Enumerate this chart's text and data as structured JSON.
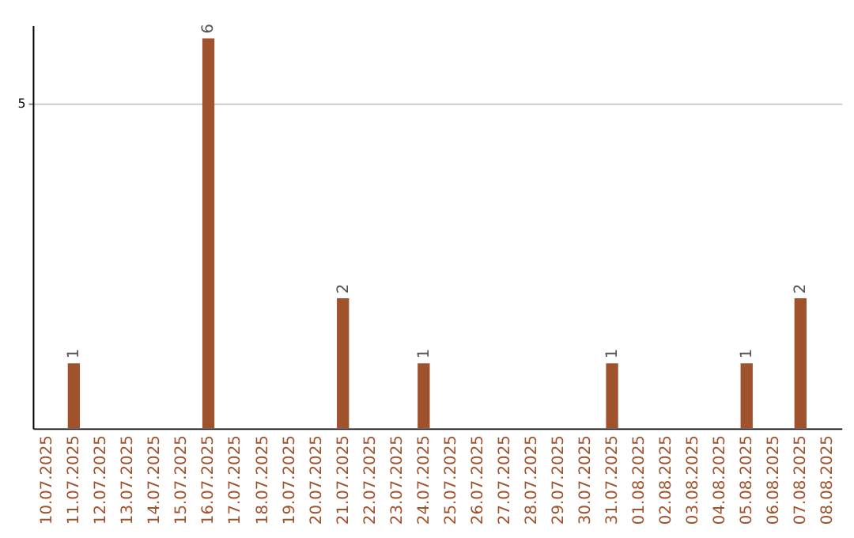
{
  "chart_data": {
    "type": "bar",
    "categories": [
      "10.07.2025",
      "11.07.2025",
      "12.07.2025",
      "13.07.2025",
      "14.07.2025",
      "15.07.2025",
      "16.07.2025",
      "17.07.2025",
      "18.07.2025",
      "19.07.2025",
      "20.07.2025",
      "21.07.2025",
      "22.07.2025",
      "23.07.2025",
      "24.07.2025",
      "25.07.2025",
      "26.07.2025",
      "27.07.2025",
      "28.07.2025",
      "29.07.2025",
      "30.07.2025",
      "31.07.2025",
      "01.08.2025",
      "02.08.2025",
      "03.08.2025",
      "04.08.2025",
      "05.08.2025",
      "06.08.2025",
      "07.08.2025",
      "08.08.2025"
    ],
    "values": [
      0,
      1,
      0,
      0,
      0,
      0,
      6,
      0,
      0,
      0,
      0,
      2,
      0,
      0,
      1,
      0,
      0,
      0,
      0,
      0,
      0,
      1,
      0,
      0,
      0,
      0,
      1,
      0,
      2,
      0
    ],
    "value_labels": [
      null,
      "1",
      null,
      null,
      null,
      null,
      "6",
      null,
      null,
      null,
      null,
      "2",
      null,
      null,
      "1",
      null,
      null,
      null,
      null,
      null,
      null,
      "1",
      null,
      null,
      null,
      null,
      "1",
      null,
      "2",
      null
    ],
    "color": "#a0522d",
    "ylim": [
      0,
      6.2
    ],
    "yticks": [
      5
    ],
    "grid": "y"
  }
}
